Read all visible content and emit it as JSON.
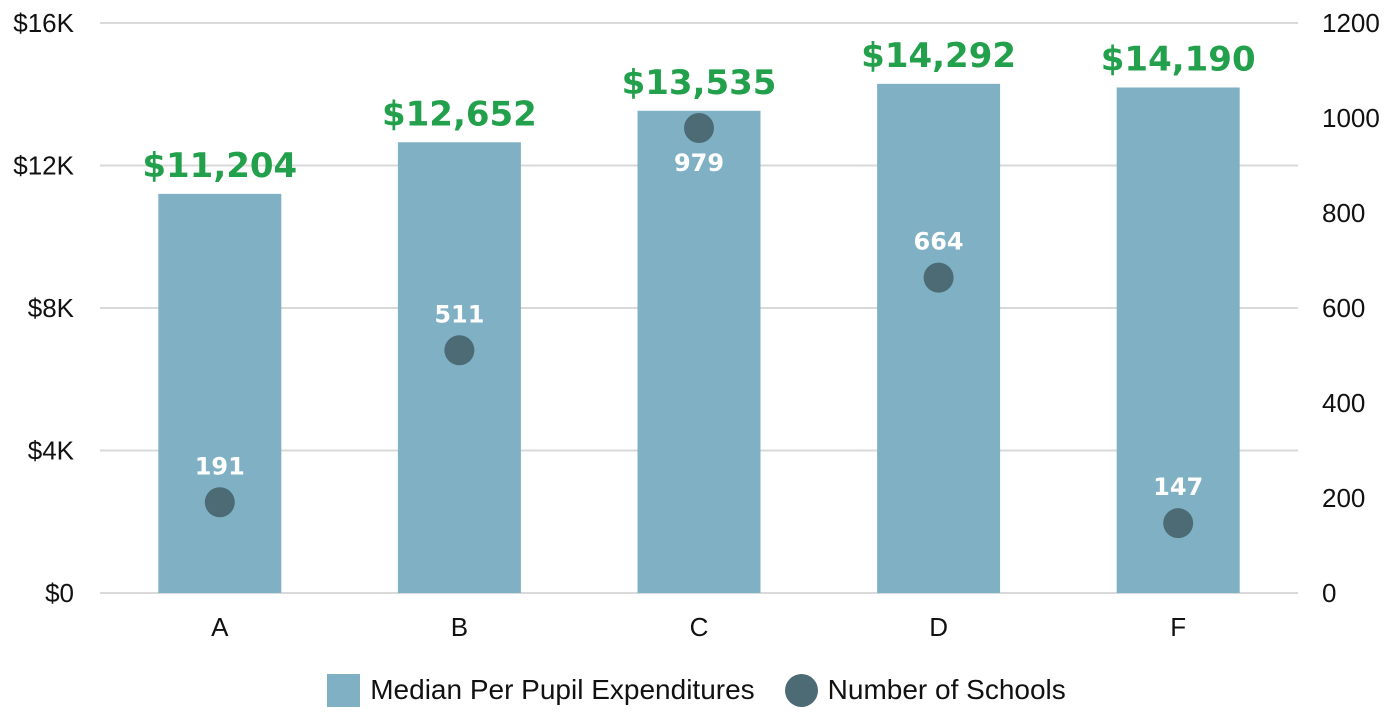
{
  "chart_data": {
    "type": "bar",
    "categories": [
      "A",
      "B",
      "C",
      "D",
      "F"
    ],
    "series": [
      {
        "name": "Median Per Pupil Expenditures",
        "axis": "left",
        "values": [
          11204,
          12652,
          13535,
          14292,
          14190
        ],
        "labels": [
          "$11,204",
          "$12,652",
          "$13,535",
          "$14,292",
          "$14,190"
        ],
        "color": "#7fb0c4"
      },
      {
        "name": "Number of Schools",
        "axis": "right",
        "mark": "dot",
        "values": [
          191,
          511,
          979,
          664,
          147
        ],
        "labels": [
          "191",
          "511",
          "979",
          "664",
          "147"
        ],
        "color": "#4c6b74"
      }
    ],
    "y_left": {
      "range": [
        0,
        16000
      ],
      "ticks": [
        0,
        4000,
        8000,
        12000,
        16000
      ],
      "tick_labels": [
        "$0",
        "$4K",
        "$8K",
        "$12K",
        "$16K"
      ]
    },
    "y_right": {
      "range": [
        0,
        1200
      ],
      "ticks": [
        0,
        200,
        400,
        600,
        800,
        1000,
        1200
      ],
      "tick_labels": [
        "0",
        "200",
        "400",
        "600",
        "800",
        "1000",
        "1200"
      ]
    },
    "grid": true,
    "legend_position": "bottom",
    "label_color": "#22a04b",
    "grid_color": "#d9d9d9"
  }
}
